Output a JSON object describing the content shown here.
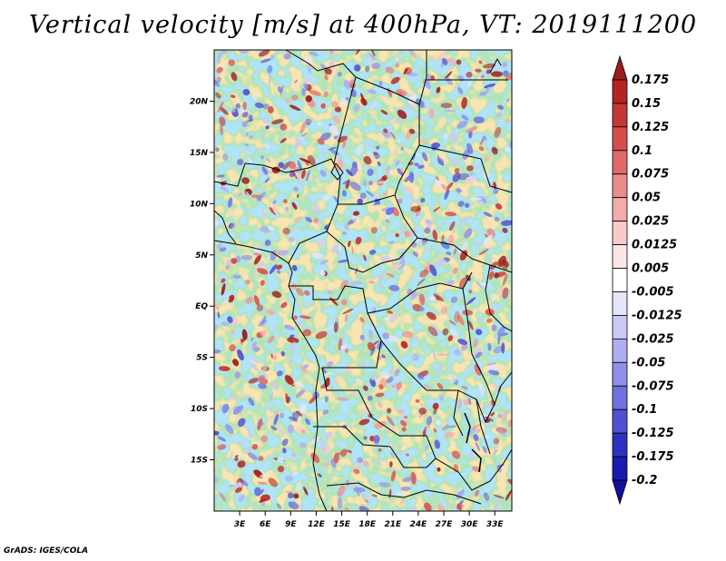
{
  "title": "Vertical velocity [m/s] at 400hPa, VT: 2019111200",
  "credit": "GrADS: IGES/COLA",
  "map": {
    "lon_range": [
      0,
      35
    ],
    "lat_range": [
      -20,
      25
    ],
    "lon_ticks": [
      "3E",
      "6E",
      "9E",
      "12E",
      "15E",
      "18E",
      "21E",
      "24E",
      "27E",
      "30E",
      "33E"
    ],
    "lat_ticks": [
      "20N",
      "15N",
      "10N",
      "5N",
      "EQ",
      "5S",
      "10S",
      "15S"
    ],
    "field_description": "mixed red (upward) and blue (downward) vertical velocity speckle over Central Africa"
  },
  "colorbar": {
    "labels": [
      "0.175",
      "0.15",
      "0.125",
      "0.1",
      "0.075",
      "0.05",
      "0.025",
      "0.0125",
      "0.005",
      "-0.005",
      "-0.0125",
      "-0.025",
      "-0.05",
      "-0.075",
      "-0.1",
      "-0.125",
      "-0.175",
      "-0.2"
    ],
    "colors": [
      "#9b1b1b",
      "#b22424",
      "#c53636",
      "#d64d4d",
      "#e06a6a",
      "#ea8c8c",
      "#f2acac",
      "#f8caca",
      "#fde6e6",
      "#ffffff",
      "#e6e6fb",
      "#cacaf5",
      "#aeaef0",
      "#9090e8",
      "#7070de",
      "#5050d0",
      "#3030c0",
      "#1a1ab0",
      "#10109a"
    ]
  }
}
